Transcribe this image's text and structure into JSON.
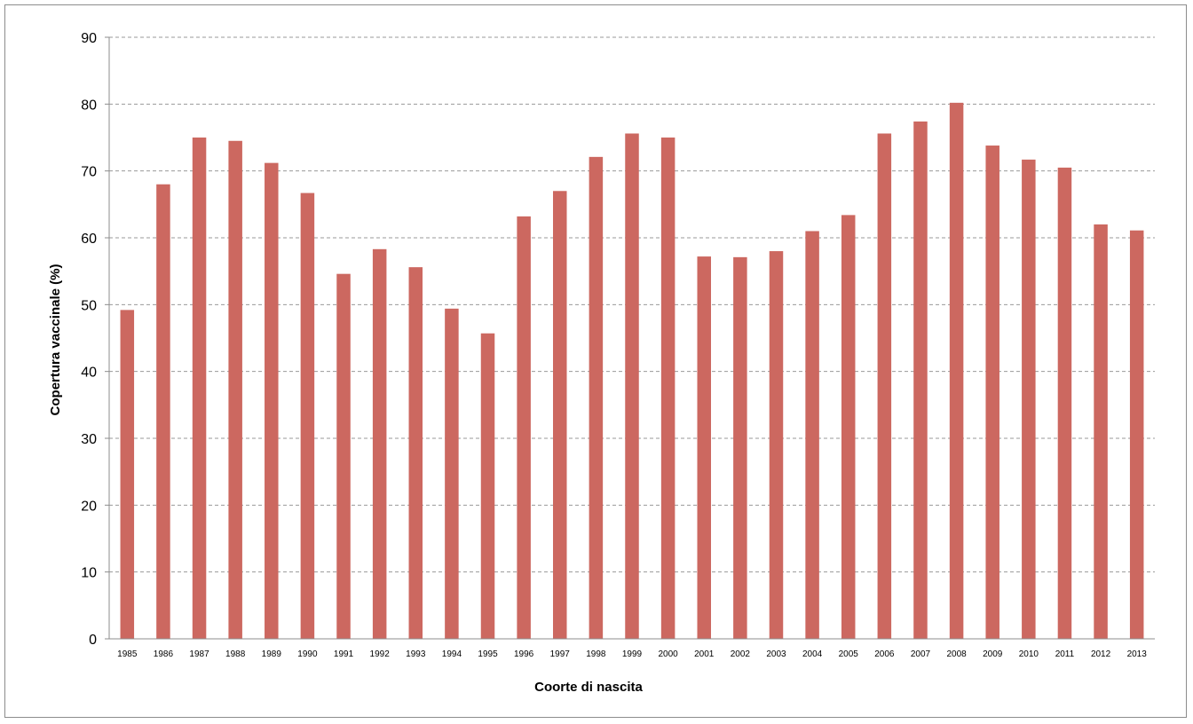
{
  "chart_data": {
    "type": "bar",
    "title": "",
    "xlabel": "Coorte di nascita",
    "ylabel": "Copertura vaccinale (%)",
    "ylim": [
      0,
      90
    ],
    "yticks": [
      0,
      10,
      20,
      30,
      40,
      50,
      60,
      70,
      80,
      90
    ],
    "grid": true,
    "bar_color": "#cc6860",
    "categories": [
      "1985",
      "1986",
      "1987",
      "1988",
      "1989",
      "1990",
      "1991",
      "1992",
      "1993",
      "1994",
      "1995",
      "1996",
      "1997",
      "1998",
      "1999",
      "2000",
      "2001",
      "2002",
      "2003",
      "2004",
      "2005",
      "2006",
      "2007",
      "2008",
      "2009",
      "2010",
      "2011",
      "2012",
      "2013"
    ],
    "values": [
      49.2,
      68.0,
      75.0,
      74.5,
      71.2,
      66.7,
      54.6,
      58.3,
      55.6,
      49.4,
      45.7,
      63.2,
      67.0,
      72.1,
      75.6,
      75.0,
      57.2,
      57.1,
      58.0,
      61.0,
      63.4,
      75.6,
      77.4,
      80.2,
      73.8,
      71.7,
      70.5,
      62.0,
      61.1
    ]
  }
}
